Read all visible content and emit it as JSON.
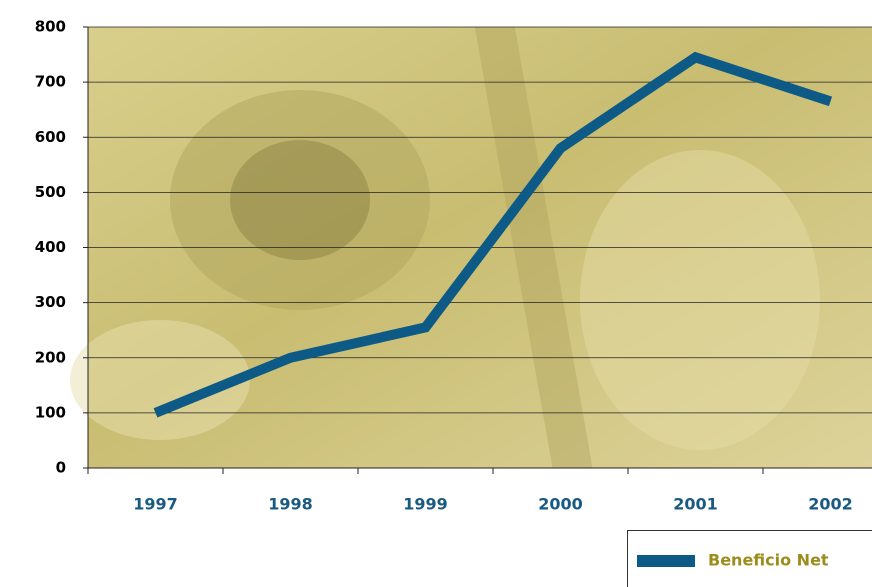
{
  "chart_data": {
    "type": "line",
    "categories": [
      "1997",
      "1998",
      "1999",
      "2000",
      "2001",
      "2002"
    ],
    "series": [
      {
        "name": "Beneficio Net",
        "color": "#0e5a86",
        "values": [
          100,
          200,
          255,
          580,
          745,
          665
        ]
      }
    ],
    "ylim": [
      0,
      800
    ],
    "yticks": [
      0,
      100,
      200,
      300,
      400,
      500,
      600,
      700,
      800
    ],
    "grid": true
  }
}
